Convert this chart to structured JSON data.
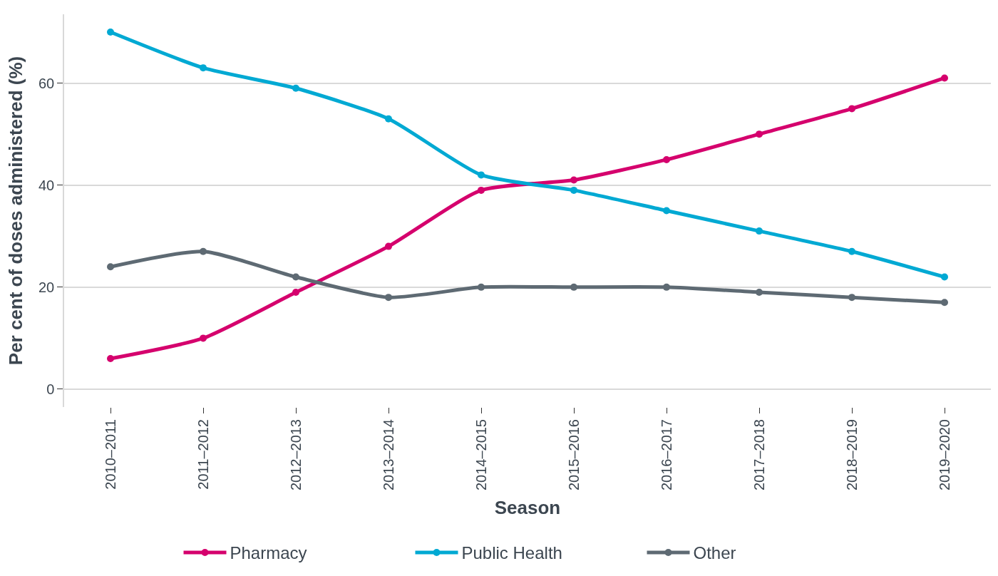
{
  "chart_data": {
    "type": "line",
    "xlabel": "Season",
    "ylabel": "Per cent of doses administered (%)",
    "categories": [
      "2010–2011",
      "2011–2012",
      "2012–2013",
      "2013–2014",
      "2014–2015",
      "2015–2016",
      "2016–2017",
      "2017–2018",
      "2018–2019",
      "2019–2020"
    ],
    "series": [
      {
        "name": "Pharmacy",
        "color": "#d5006d",
        "values": [
          6,
          10,
          19,
          28,
          39,
          41,
          45,
          50,
          55,
          61
        ]
      },
      {
        "name": "Public Health",
        "color": "#00a9d3",
        "values": [
          70,
          63,
          59,
          53,
          42,
          39,
          35,
          31,
          27,
          22
        ]
      },
      {
        "name": "Other",
        "color": "#5e6a73",
        "values": [
          24,
          27,
          22,
          18,
          20,
          20,
          20,
          19,
          18,
          17
        ]
      }
    ],
    "ylim": [
      -3.5,
      73.5
    ],
    "yticks": [
      0,
      20,
      40,
      60
    ],
    "grid": "y",
    "legend": "bottom",
    "marker": "circle",
    "line_style": "solid"
  }
}
